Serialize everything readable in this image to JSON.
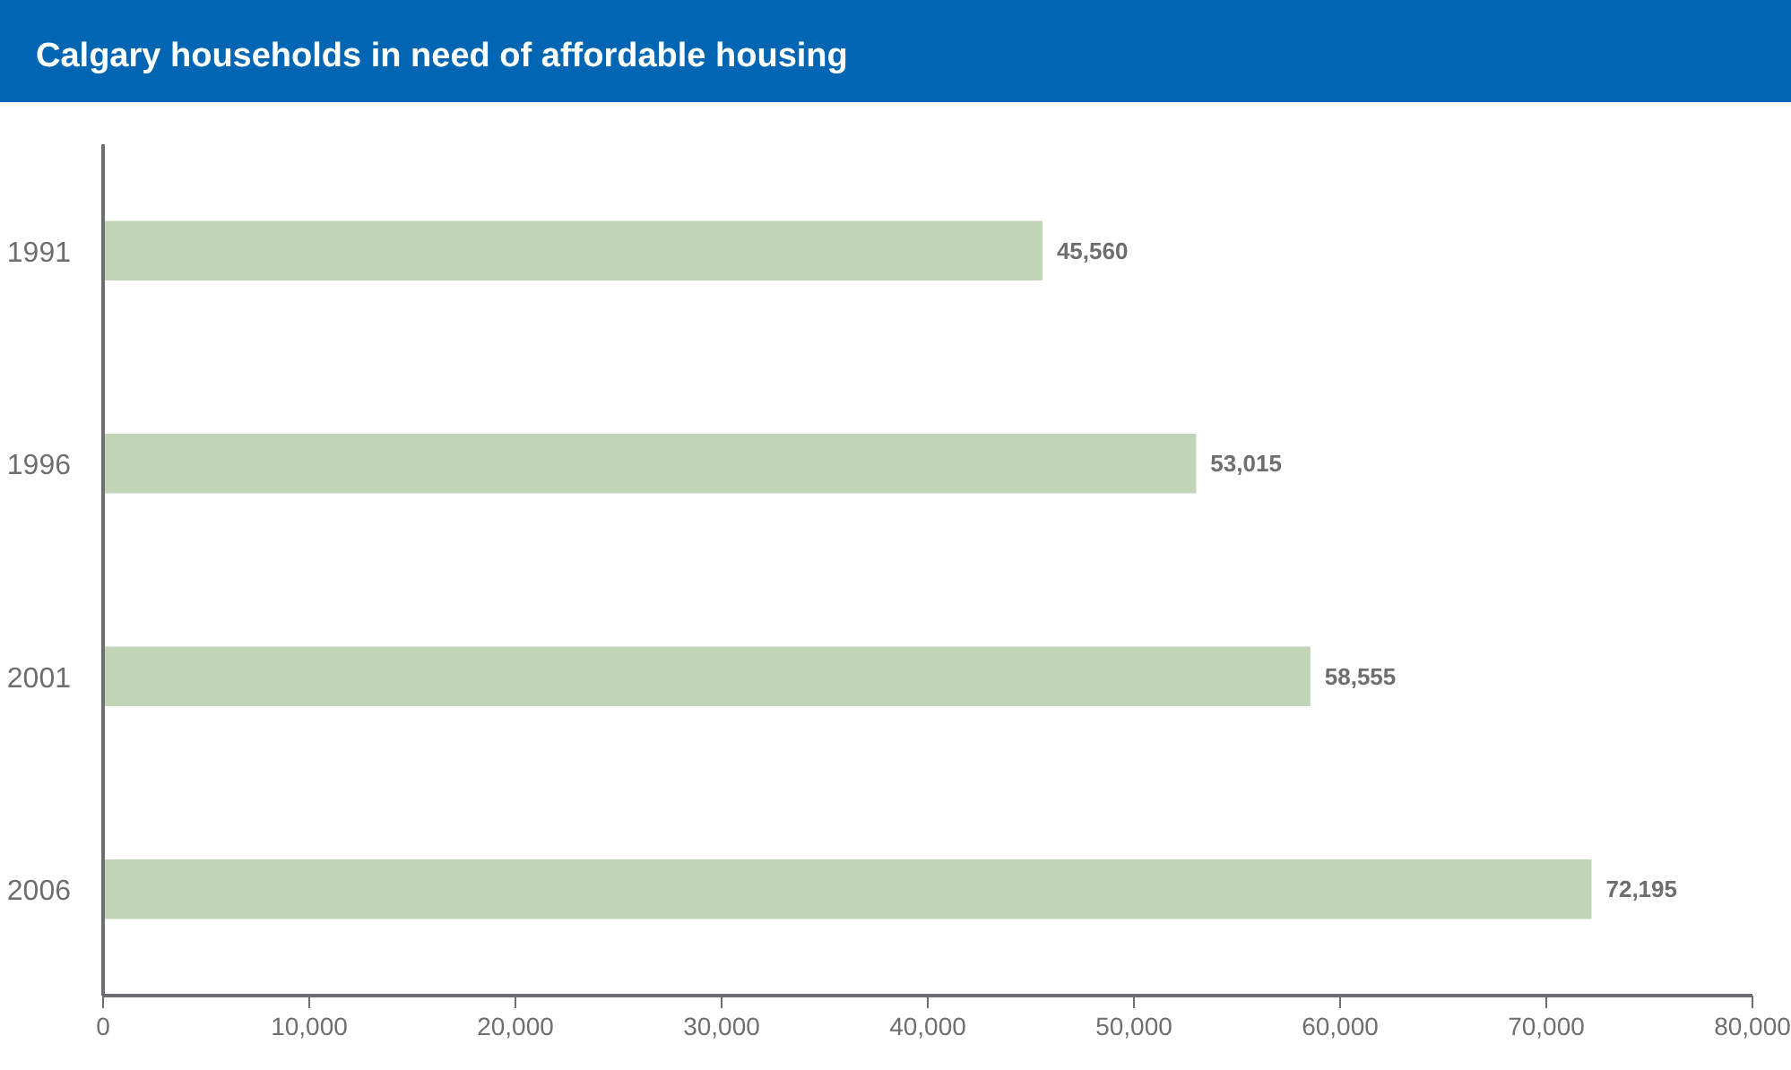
{
  "chart_data": {
    "type": "bar",
    "orientation": "horizontal",
    "title": "Calgary households in need of affordable housing",
    "categories": [
      "1991",
      "1996",
      "2001",
      "2006"
    ],
    "values": [
      45560,
      53015,
      58555,
      72195
    ],
    "value_labels": [
      "45,560",
      "53,015",
      "58,555",
      "72,195"
    ],
    "color": "#c1d4b5",
    "xlim": [
      0,
      80000
    ],
    "xticks": [
      0,
      {
        "value": 10000,
        "label": "10,000"
      },
      {
        "value": 20000,
        "label": "20,000"
      },
      {
        "value": 30000,
        "label": "30,000"
      },
      {
        "value": 40000,
        "label": "40,000"
      },
      {
        "value": 50000,
        "label": "50,000"
      },
      {
        "value": 60000,
        "label": "60,000"
      },
      {
        "value": 70000,
        "label": "70,000"
      },
      {
        "value": 80000,
        "label": "80,000"
      }
    ],
    "grid": false
  }
}
